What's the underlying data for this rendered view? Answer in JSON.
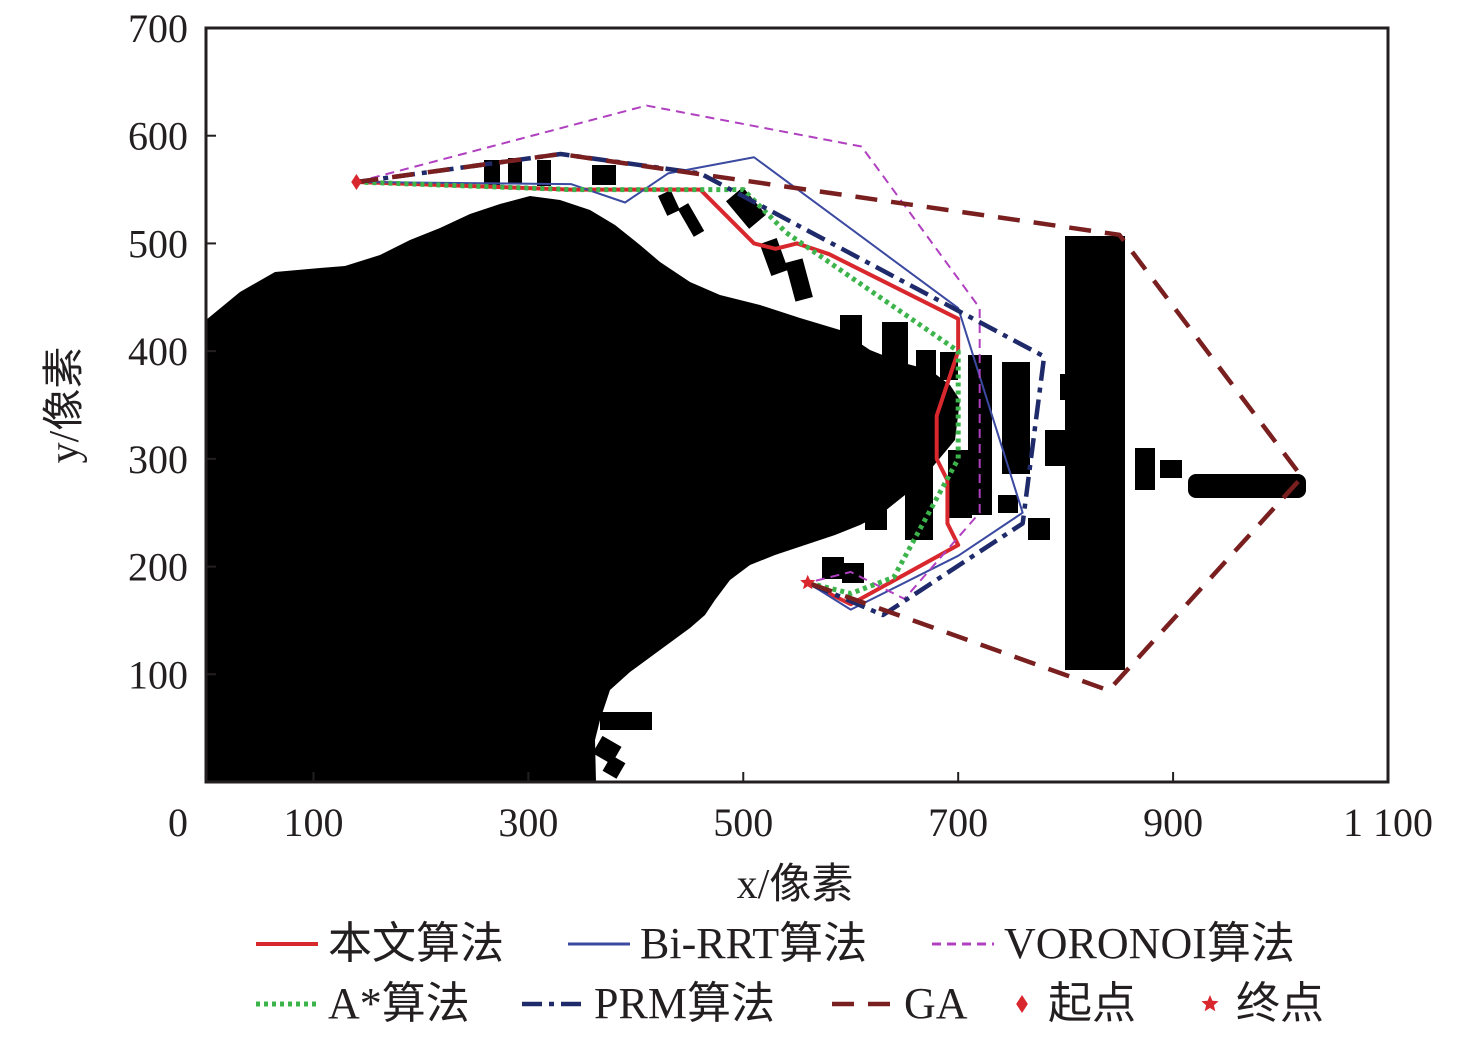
{
  "chart_data": {
    "type": "line",
    "title": "",
    "xlabel": "x/像素",
    "ylabel": "y/像素",
    "xlim": [
      0,
      1100
    ],
    "ylim": [
      0,
      700
    ],
    "x_ticks": [
      0,
      100,
      300,
      500,
      700,
      900,
      1100
    ],
    "x_tick_labels": [
      "0",
      "100",
      "300",
      "500",
      "700",
      "900",
      "1 100"
    ],
    "y_ticks": [
      100,
      200,
      300,
      400,
      500,
      600,
      700
    ],
    "y_tick_labels": [
      "100",
      "200",
      "300",
      "400",
      "500",
      "600",
      "700"
    ],
    "grid": false,
    "legend_position": "bottom",
    "background": "obstacle map (black regions = obstacles, white = free space)",
    "series": [
      {
        "name": "本文算法",
        "color": "#d9272e",
        "style": "solid",
        "x": [
          140,
          340,
          460,
          510,
          530,
          550,
          580,
          700,
          700,
          680,
          680,
          690,
          690,
          700,
          600,
          560
        ],
        "y": [
          557,
          550,
          550,
          500,
          495,
          500,
          490,
          430,
          400,
          340,
          300,
          280,
          240,
          220,
          165,
          185
        ]
      },
      {
        "name": "Bi-RRT算法",
        "color": "#3b4aa0",
        "style": "thin-solid",
        "x": [
          140,
          340,
          390,
          430,
          510,
          700,
          760,
          700,
          600,
          560
        ],
        "y": [
          557,
          555,
          538,
          565,
          580,
          440,
          250,
          210,
          160,
          185
        ]
      },
      {
        "name": "VORONOI算法",
        "color": "#b040c0",
        "style": "dashed",
        "x": [
          140,
          410,
          610,
          720,
          720,
          650,
          600,
          560
        ],
        "y": [
          557,
          628,
          590,
          440,
          250,
          170,
          195,
          185
        ]
      },
      {
        "name": "A*算法",
        "color": "#3cb44b",
        "style": "dotted",
        "x": [
          140,
          340,
          450,
          500,
          540,
          700,
          700,
          640,
          600,
          560
        ],
        "y": [
          557,
          550,
          550,
          550,
          510,
          400,
          300,
          190,
          175,
          185
        ]
      },
      {
        "name": "PRM算法",
        "color": "#1f2a6b",
        "style": "dashdot",
        "x": [
          140,
          330,
          460,
          780,
          760,
          630,
          560
        ],
        "y": [
          557,
          583,
          565,
          395,
          240,
          155,
          185
        ]
      },
      {
        "name": "GA",
        "color": "#7a1f1f",
        "style": "dashed-thick",
        "x": [
          140,
          330,
          850,
          1020,
          840,
          560
        ],
        "y": [
          557,
          583,
          508,
          283,
          85,
          185
        ]
      }
    ],
    "markers": [
      {
        "name": "起点",
        "shape": "diamond",
        "color": "#d9272e",
        "x": 140,
        "y": 557
      },
      {
        "name": "终点",
        "shape": "star",
        "color": "#d9272e",
        "x": 560,
        "y": 185
      }
    ]
  }
}
